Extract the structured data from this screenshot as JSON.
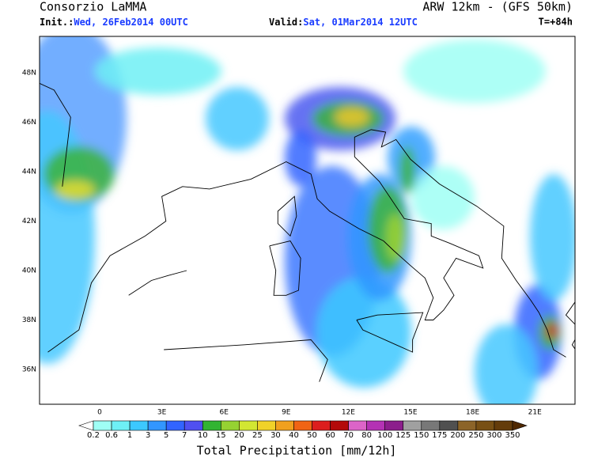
{
  "header": {
    "source": "Consorzio LaMMA",
    "model": "ARW 12km - (GFS 50km)",
    "init_label": "Init.:",
    "init_value": "Wed, 26Feb2014 00UTC",
    "valid_label": "Valid:",
    "valid_value": "Sat, 01Mar2014 12UTC",
    "lead_time": "T=+84h"
  },
  "map": {
    "lat_labels": [
      "48N",
      "46N",
      "44N",
      "42N",
      "40N",
      "38N",
      "36N"
    ],
    "lon_labels": [
      "0",
      "3E",
      "6E",
      "9E",
      "12E",
      "15E",
      "18E",
      "21E"
    ]
  },
  "colorbar": {
    "label": "Total Precipitation [mm/12h]",
    "levels": [
      "0.2",
      "0.6",
      "1",
      "3",
      "5",
      "7",
      "10",
      "15",
      "20",
      "25",
      "30",
      "40",
      "50",
      "60",
      "70",
      "80",
      "100",
      "125",
      "150",
      "175",
      "200",
      "250",
      "300",
      "350"
    ]
  }
}
